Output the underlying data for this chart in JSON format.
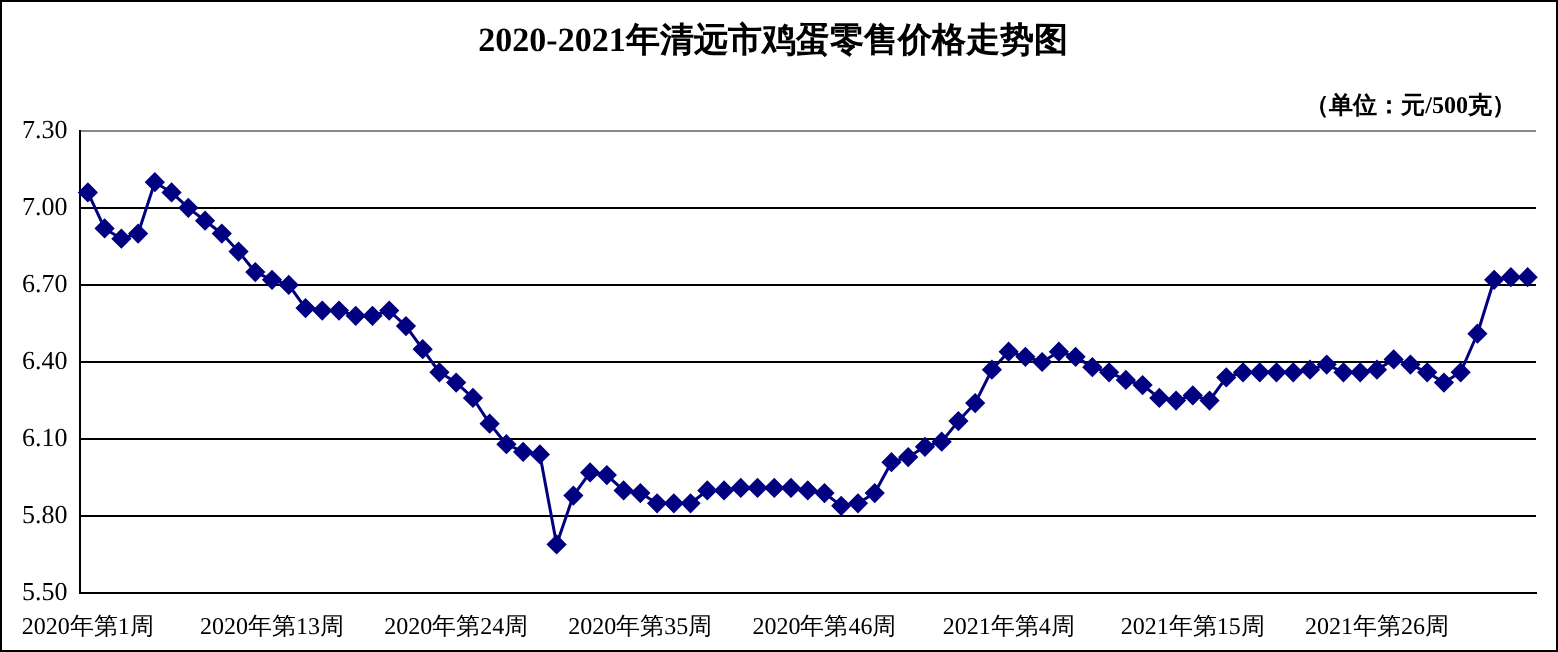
{
  "chart_data": {
    "type": "line",
    "title": "2020-2021年清远市鸡蛋零售价格走势图",
    "annotations": [
      "（单位：元/500克）"
    ],
    "categories": [
      "2020年第1周",
      null,
      null,
      null,
      null,
      null,
      null,
      null,
      null,
      null,
      null,
      "2020年第13周",
      null,
      null,
      null,
      null,
      null,
      null,
      null,
      null,
      null,
      null,
      "2020年第24周",
      null,
      null,
      null,
      null,
      null,
      null,
      null,
      null,
      null,
      null,
      "2020年第35周",
      null,
      null,
      null,
      null,
      null,
      null,
      null,
      null,
      null,
      null,
      "2020年第46周",
      null,
      null,
      null,
      null,
      null,
      null,
      null,
      null,
      null,
      null,
      "2021年第4周",
      null,
      null,
      null,
      null,
      null,
      null,
      null,
      null,
      null,
      null,
      "2021年第15周",
      null,
      null,
      null,
      null,
      null,
      null,
      null,
      null,
      null,
      null,
      "2021年第26周",
      null,
      null,
      null,
      null,
      null,
      null,
      null,
      null,
      null
    ],
    "series": [
      {
        "color": "#000080",
        "values": [
          7.06,
          6.92,
          6.88,
          6.9,
          7.1,
          7.06,
          7.0,
          6.95,
          6.9,
          6.83,
          6.75,
          6.72,
          6.7,
          6.61,
          6.6,
          6.6,
          6.58,
          6.58,
          6.6,
          6.54,
          6.45,
          6.36,
          6.32,
          6.26,
          6.16,
          6.08,
          6.05,
          6.04,
          5.69,
          5.88,
          5.97,
          5.96,
          5.9,
          5.89,
          5.85,
          5.85,
          5.85,
          5.9,
          5.9,
          5.91,
          5.91,
          5.91,
          5.91,
          5.9,
          5.89,
          5.84,
          5.85,
          5.89,
          6.01,
          6.03,
          6.07,
          6.09,
          6.17,
          6.24,
          6.37,
          6.44,
          6.42,
          6.4,
          6.44,
          6.42,
          6.38,
          6.36,
          6.33,
          6.31,
          6.26,
          6.25,
          6.27,
          6.25,
          6.34,
          6.36,
          6.36,
          6.36,
          6.36,
          6.37,
          6.39,
          6.36,
          6.36,
          6.37,
          6.41,
          6.39,
          6.36,
          6.32,
          6.36,
          6.51,
          6.72,
          6.73,
          6.73
        ]
      }
    ],
    "ylim": [
      5.5,
      7.3
    ],
    "yticks": [
      {
        "value": 5.5,
        "label": "5.50"
      },
      {
        "value": 5.8,
        "label": "5.80"
      },
      {
        "value": 6.1,
        "label": "6.10"
      },
      {
        "value": 6.4,
        "label": "6.40"
      },
      {
        "value": 6.7,
        "label": "6.70"
      },
      {
        "value": 7.0,
        "label": "7.00"
      },
      {
        "value": 7.3,
        "label": "7.30"
      }
    ],
    "grid": "y",
    "legend": false,
    "marker": "diamond",
    "line_style": "solid"
  }
}
